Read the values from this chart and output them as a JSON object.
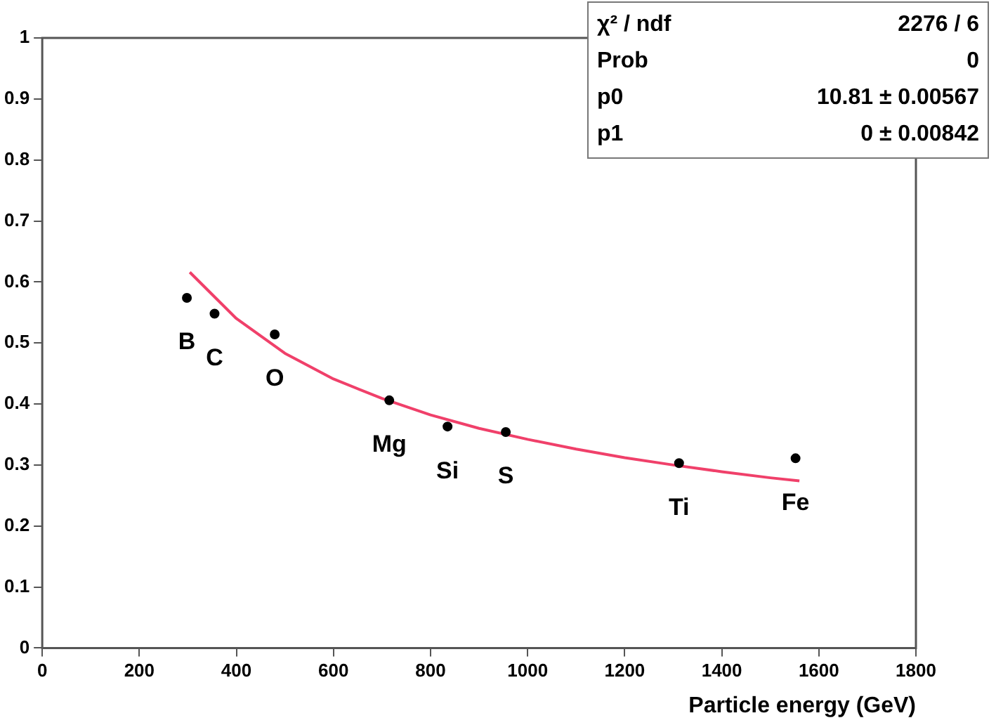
{
  "chart_data": {
    "type": "scatter",
    "xlabel": "Particle energy (GeV)",
    "series": [
      {
        "color": "#000000",
        "x": [
          298,
          355,
          479,
          715,
          835,
          955,
          1312,
          1552
        ],
        "values": [
          0.574,
          0.548,
          0.514,
          0.406,
          0.363,
          0.354,
          0.303,
          0.311
        ],
        "marker": "circle"
      },
      {
        "type": "line",
        "color": "#f0406a",
        "x": [
          304,
          400,
          500,
          600,
          700,
          800,
          900,
          1000,
          1100,
          1200,
          1300,
          1400,
          1500,
          1560
        ],
        "values": [
          0.616,
          0.54,
          0.483,
          0.441,
          0.409,
          0.382,
          0.36,
          0.342,
          0.326,
          0.312,
          0.3,
          0.289,
          0.279,
          0.274
        ],
        "marker": "none",
        "line_style": "solid"
      }
    ],
    "xlim": [
      0,
      1800
    ],
    "xticks": [
      0,
      200,
      400,
      600,
      800,
      1000,
      1200,
      1400,
      1600,
      1800
    ],
    "ylim": [
      0,
      1
    ],
    "yticks": [
      0,
      0.1,
      0.2,
      0.3,
      0.4,
      0.5,
      0.6,
      0.7,
      0.8,
      0.9,
      1
    ],
    "grid": false,
    "annotations": [
      {
        "text": "B",
        "x": 298,
        "y": 0.574
      },
      {
        "text": "C",
        "x": 355,
        "y": 0.548
      },
      {
        "text": "O",
        "x": 479,
        "y": 0.514
      },
      {
        "text": "Mg",
        "x": 715,
        "y": 0.406
      },
      {
        "text": "Si",
        "x": 835,
        "y": 0.363
      },
      {
        "text": "S",
        "x": 955,
        "y": 0.354
      },
      {
        "text": "Ti",
        "x": 1312,
        "y": 0.303
      },
      {
        "text": "Fe",
        "x": 1552,
        "y": 0.311
      },
      "χ² / ndf",
      "2276 / 6",
      "Prob",
      "0",
      "p0",
      "10.81 ± 0.00567",
      "p1",
      "0 ± 0.00842"
    ]
  }
}
